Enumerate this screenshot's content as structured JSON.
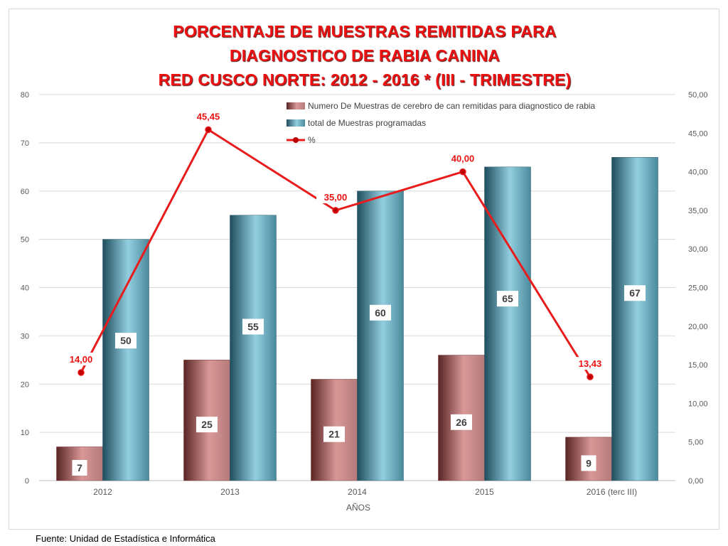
{
  "title": {
    "line1": "PORCENTAJE DE MUESTRAS REMITIDAS PARA",
    "line2": "DIAGNOSTICO DE RABIA CANINA",
    "line3": "RED CUSCO NORTE: 2012 - 2016 * (III - TRIMESTRE)"
  },
  "source": "Fuente: Unidad de Estadística e Informática",
  "colors": {
    "line": "#e81c1c",
    "bar1": "#b06a6a",
    "bar2": "#4a9aab",
    "grid": "#d9d9d9"
  },
  "chart_data": {
    "type": "bar",
    "categories": [
      "2012",
      "2013",
      "2014",
      "2015",
      "2016 (terc III)"
    ],
    "xlabel": "AÑOS",
    "ylim": [
      0,
      80
    ],
    "y_ticks": [
      "0",
      "10",
      "20",
      "30",
      "40",
      "50",
      "60",
      "70",
      "80"
    ],
    "y2lim": [
      0,
      50
    ],
    "y2_ticks": [
      "0,00",
      "5,00",
      "10,00",
      "15,00",
      "20,00",
      "25,00",
      "30,00",
      "35,00",
      "40,00",
      "45,00",
      "50,00"
    ],
    "grid": true,
    "legend_position": "top-right",
    "series": [
      {
        "name": "Numero  De Muestras de cerebro de can remitidas para diagnostico de rabia",
        "kind": "bar",
        "axis": "left",
        "values": [
          7,
          25,
          21,
          26,
          9
        ],
        "labels": [
          "7",
          "25",
          "21",
          "26",
          "9"
        ]
      },
      {
        "name": "total de Muestras programadas",
        "kind": "bar",
        "axis": "left",
        "values": [
          50,
          55,
          60,
          65,
          67
        ],
        "labels": [
          "50",
          "55",
          "60",
          "65",
          "67"
        ]
      },
      {
        "name": "%",
        "kind": "line",
        "axis": "right",
        "values": [
          14.0,
          45.45,
          35.0,
          40.0,
          13.43
        ],
        "labels": [
          "14,00",
          "45,45",
          "35,00",
          "40,00",
          "13,43"
        ]
      }
    ]
  }
}
